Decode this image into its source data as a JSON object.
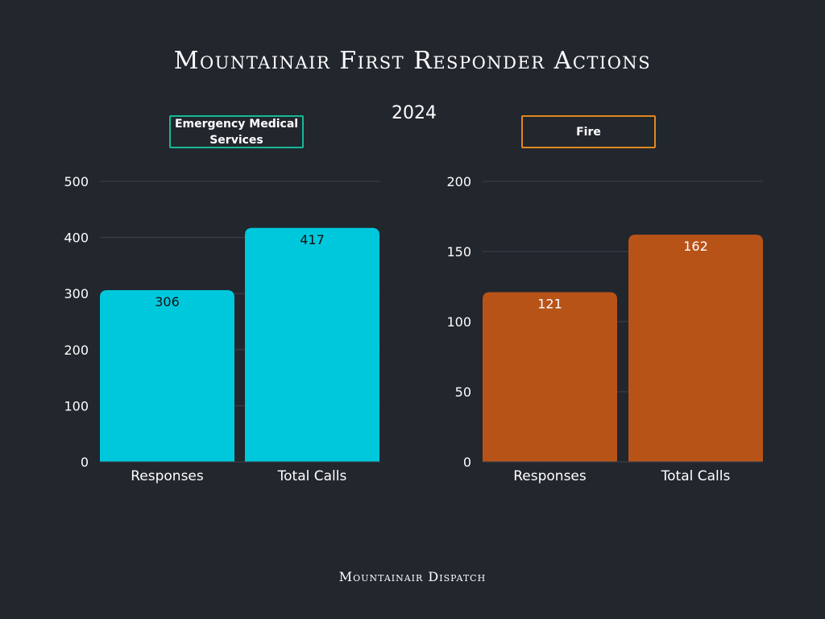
{
  "title": "Mountainair First Responder Actions",
  "subtitle": "2024",
  "footer": "Mountainair Dispatch",
  "chart_data": [
    {
      "type": "bar",
      "panel": "left",
      "legend": "Emergency Medical Services",
      "legend_border_color": "#17b897",
      "bar_color": "#00c8dc",
      "label_color": "#111111",
      "categories": [
        "Responses",
        "Total Calls"
      ],
      "values": [
        306,
        417
      ],
      "ylim": [
        0,
        500
      ],
      "yticks": [
        0,
        100,
        200,
        300,
        400,
        500
      ],
      "grid": true
    },
    {
      "type": "bar",
      "panel": "right",
      "legend": "Fire",
      "legend_border_color": "#e0881f",
      "bar_color": "#b85318",
      "label_color": "#ffffff",
      "categories": [
        "Responses",
        "Total Calls"
      ],
      "values": [
        121,
        162
      ],
      "ylim": [
        0,
        200
      ],
      "yticks": [
        0,
        50,
        100,
        150,
        200
      ],
      "grid": true
    }
  ]
}
